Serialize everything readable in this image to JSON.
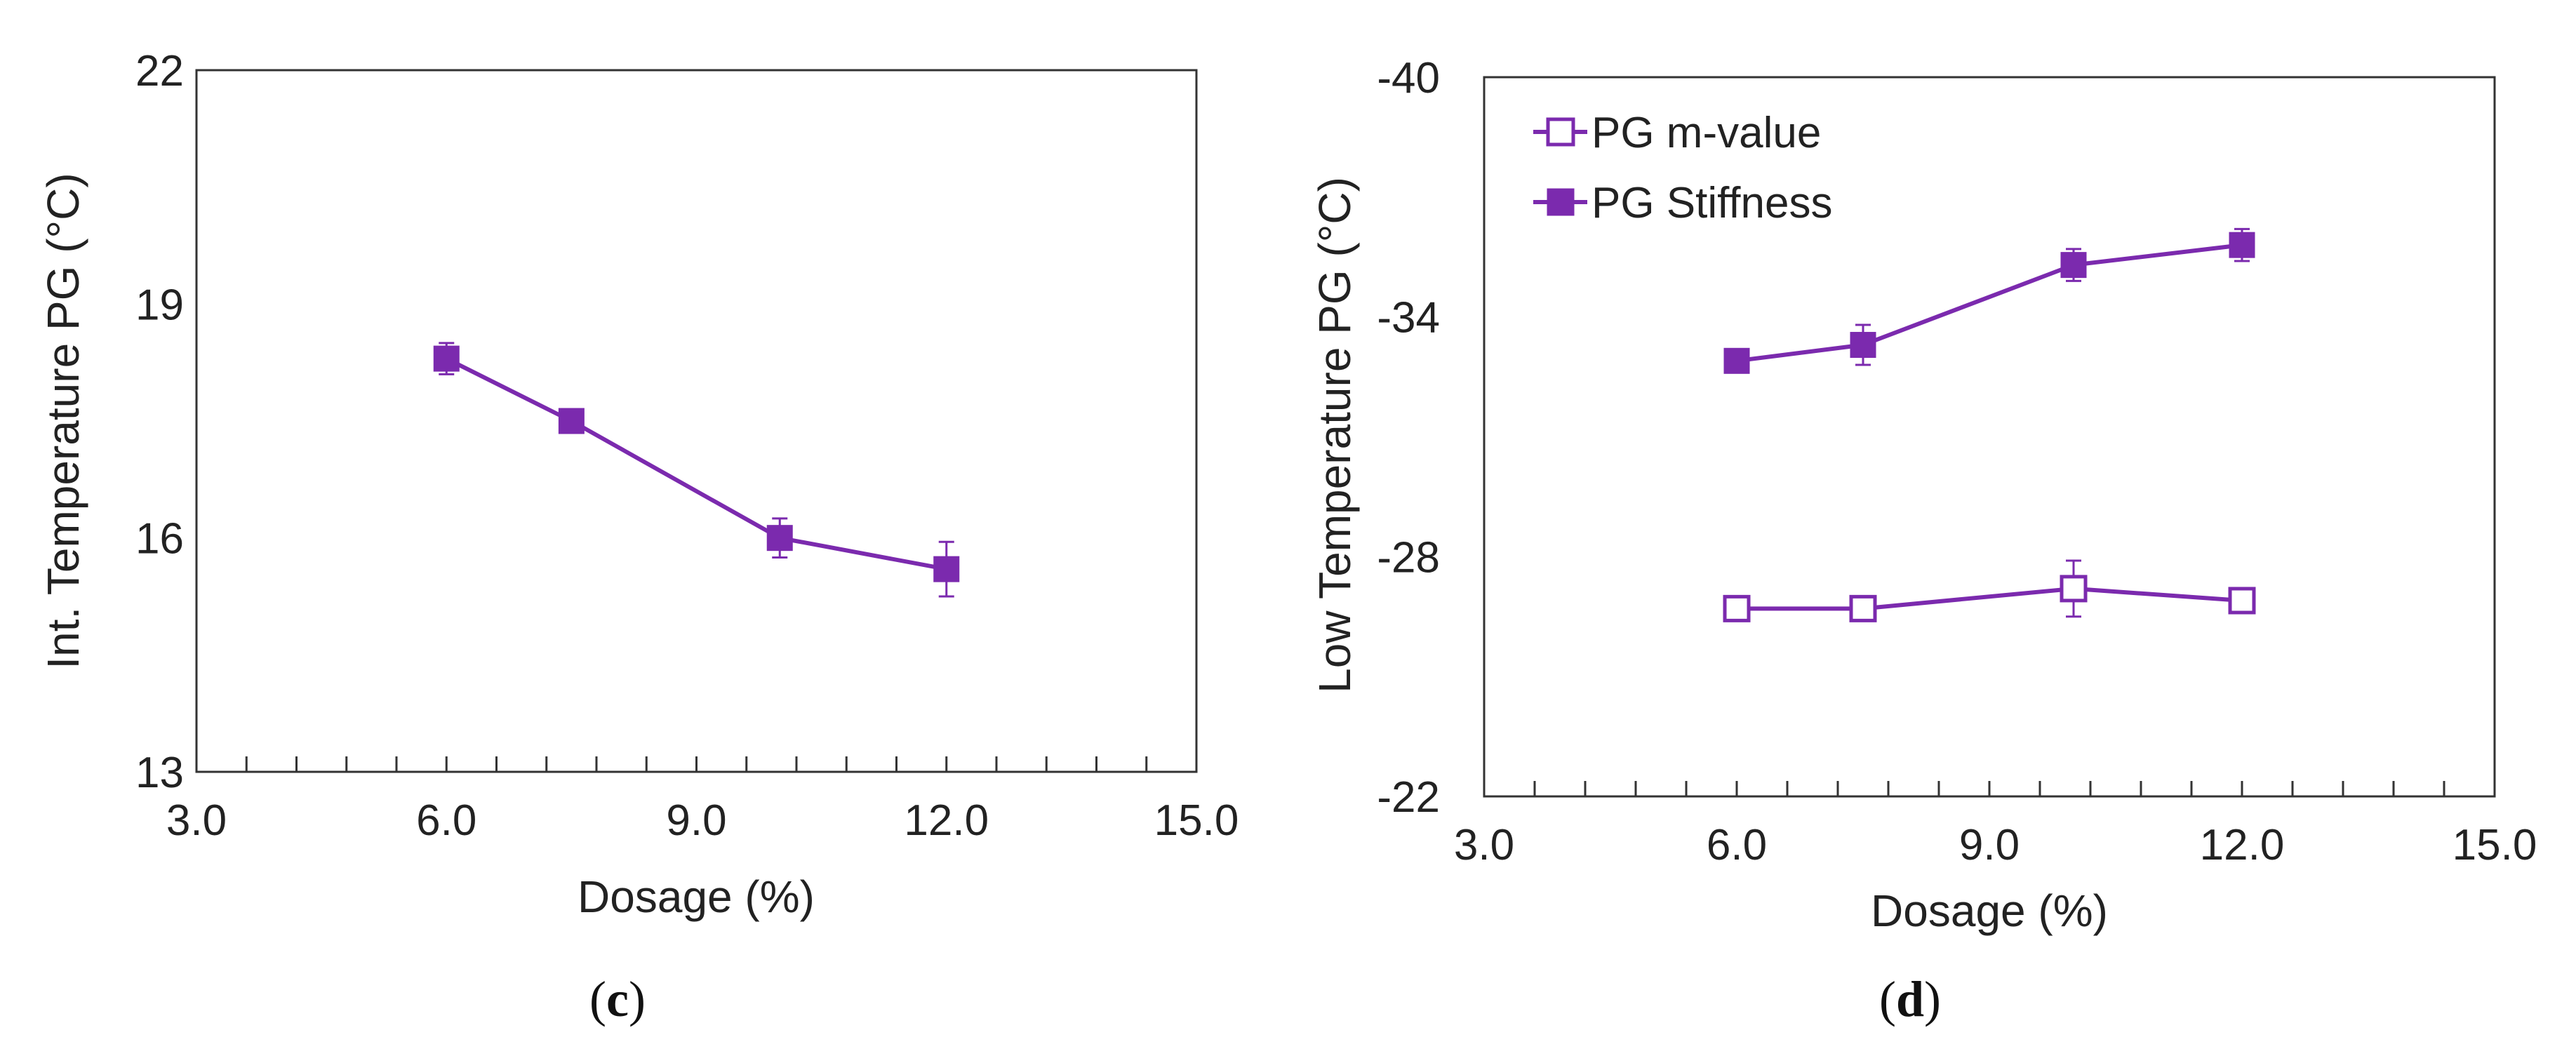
{
  "chart_data": [
    {
      "panel": "(c)",
      "panel_letter": "c",
      "type": "line",
      "title": "",
      "xlabel": "Dosage (%)",
      "ylabel": "Int. Temperature PG (°C)",
      "xlim": [
        3.0,
        15.0
      ],
      "ylim": [
        13,
        22
      ],
      "x_ticks": [
        3.0,
        6.0,
        9.0,
        12.0,
        15.0
      ],
      "x_tick_labels": [
        "3.0",
        "6.0",
        "9.0",
        "12.0",
        "15.0"
      ],
      "x_minor_step": 0.6,
      "y_ticks": [
        13,
        16,
        19,
        22
      ],
      "y_tick_labels": [
        "13",
        "16",
        "19",
        "22"
      ],
      "y_reversed": false,
      "grid": false,
      "legend": null,
      "series": [
        {
          "name": "Int. Temperature PG",
          "marker": "filled-square",
          "color": "#7B2AAE",
          "x": [
            6.0,
            7.5,
            10.0,
            12.0
          ],
          "y": [
            18.3,
            17.5,
            16.0,
            15.6
          ],
          "error": [
            0.2,
            0.1,
            0.25,
            0.35
          ]
        }
      ]
    },
    {
      "panel": "(d)",
      "panel_letter": "d",
      "type": "line",
      "title": "",
      "xlabel": "Dosage (%)",
      "ylabel": "Low Temperature PG (°C)",
      "xlim": [
        3.0,
        15.0
      ],
      "ylim": [
        -22,
        -40
      ],
      "x_ticks": [
        3.0,
        6.0,
        9.0,
        12.0,
        15.0
      ],
      "x_tick_labels": [
        "3.0",
        "6.0",
        "9.0",
        "12.0",
        "15.0"
      ],
      "x_minor_step": 0.6,
      "y_ticks": [
        -22,
        -28,
        -34,
        -40
      ],
      "y_tick_labels": [
        "-22",
        "-28",
        "-34",
        "-40"
      ],
      "y_reversed": true,
      "grid": false,
      "legend": "top-left",
      "series": [
        {
          "name": "PG m-value",
          "marker": "open-square",
          "color": "#7B2AAE",
          "x": [
            6.0,
            7.5,
            10.0,
            12.0
          ],
          "y": [
            -26.7,
            -26.7,
            -27.2,
            -26.9
          ],
          "error": [
            0.2,
            0.2,
            0.7,
            0.2
          ]
        },
        {
          "name": "PG Stiffness",
          "marker": "filled-square",
          "color": "#7B2AAE",
          "x": [
            6.0,
            7.5,
            10.0,
            12.0
          ],
          "y": [
            -32.9,
            -33.3,
            -35.3,
            -35.8
          ],
          "error": [
            0.2,
            0.5,
            0.4,
            0.4
          ]
        }
      ]
    }
  ]
}
